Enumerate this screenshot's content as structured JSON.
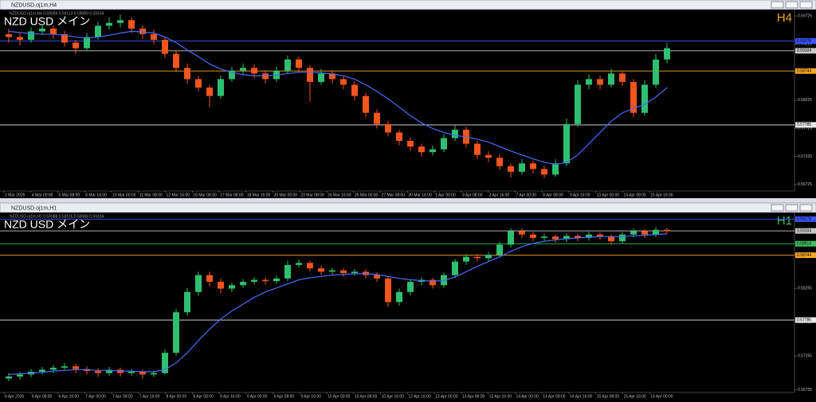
{
  "chart_data": [
    {
      "type": "candlestick",
      "window_title": "NZDUSD.oj1m,H4",
      "info": "NZDUSD.oj1m,H4 0.59094 0.59113 0.59089 0.59104",
      "title": "NZD USD メイン",
      "timeframe": "H4",
      "timeframe_color": "#f5a623",
      "up_color": "#2fbf71",
      "down_color": "#f2551d",
      "ylim": [
        0.5665,
        0.5981
      ],
      "yticks": [
        0.56725,
        0.57225,
        0.57725,
        0.58225,
        0.58725,
        0.59225,
        0.59725
      ],
      "x_labels": [
        "2 Mar 2026",
        "4 Mar 00:00",
        "5 Mar 08:00",
        "6 Mar 16:00",
        "10 Mar 00:00",
        "11 Mar 08:00",
        "12 Mar 16:00",
        "16 Mar 08:00",
        "17 Mar 08:00",
        "18 Mar 16:00",
        "20 Mar 00:00",
        "23 Mar 08:00",
        "24 Mar 16:00",
        "26 Mar 00:00",
        "27 Mar 08:00",
        "30 Mar 16:00",
        "1 Apr 00:00",
        "3 Apr 08:00",
        "3 Apr 16:00",
        "7 Apr 00:00",
        "8 Apr 08:00",
        "9 Apr 16:00",
        "13 Apr 00:00",
        "14 Apr 08:00",
        "15 Apr 16:00"
      ],
      "hlines": [
        {
          "value": 0.59278,
          "color": "#3a55ff"
        },
        {
          "value": 0.59104,
          "color": "#c8c8c8"
        },
        {
          "value": 0.58744,
          "color": "#f5a623"
        },
        {
          "value": 0.57785,
          "color": "#e8e8e8"
        }
      ],
      "candles": [
        [
          0.594,
          0.595,
          0.5925,
          0.5935
        ],
        [
          0.5935,
          0.5942,
          0.592,
          0.593
        ],
        [
          0.593,
          0.5952,
          0.5925,
          0.5945
        ],
        [
          0.5945,
          0.5958,
          0.5938,
          0.595
        ],
        [
          0.595,
          0.5955,
          0.5932,
          0.594
        ],
        [
          0.594,
          0.5946,
          0.5918,
          0.5925
        ],
        [
          0.5925,
          0.593,
          0.5905,
          0.5915
        ],
        [
          0.5915,
          0.5942,
          0.591,
          0.5935
        ],
        [
          0.5935,
          0.5962,
          0.593,
          0.5955
        ],
        [
          0.5955,
          0.597,
          0.5948,
          0.596
        ],
        [
          0.596,
          0.5975,
          0.5952,
          0.5965
        ],
        [
          0.5965,
          0.597,
          0.5942,
          0.595
        ],
        [
          0.595,
          0.5956,
          0.5932,
          0.594
        ],
        [
          0.594,
          0.5948,
          0.5922,
          0.593
        ],
        [
          0.593,
          0.5935,
          0.5898,
          0.5905
        ],
        [
          0.5905,
          0.5912,
          0.5872,
          0.588
        ],
        [
          0.588,
          0.5888,
          0.5852,
          0.586
        ],
        [
          0.586,
          0.5866,
          0.5838,
          0.5845
        ],
        [
          0.5845,
          0.585,
          0.581,
          0.583
        ],
        [
          0.583,
          0.5866,
          0.5825,
          0.586
        ],
        [
          0.586,
          0.5882,
          0.5855,
          0.5875
        ],
        [
          0.5875,
          0.5888,
          0.5868,
          0.588
        ],
        [
          0.588,
          0.5886,
          0.5862,
          0.587
        ],
        [
          0.587,
          0.5876,
          0.5852,
          0.586
        ],
        [
          0.586,
          0.5882,
          0.5855,
          0.5875
        ],
        [
          0.5875,
          0.5902,
          0.587,
          0.5895
        ],
        [
          0.5895,
          0.59,
          0.5872,
          0.588
        ],
        [
          0.588,
          0.5885,
          0.582,
          0.5855
        ],
        [
          0.5855,
          0.5878,
          0.585,
          0.587
        ],
        [
          0.587,
          0.5876,
          0.5852,
          0.586
        ],
        [
          0.586,
          0.5866,
          0.5842,
          0.585
        ],
        [
          0.585,
          0.5856,
          0.5822,
          0.583
        ],
        [
          0.583,
          0.5836,
          0.5792,
          0.58
        ],
        [
          0.58,
          0.5806,
          0.5772,
          0.578
        ],
        [
          0.578,
          0.5786,
          0.5758,
          0.5765
        ],
        [
          0.5765,
          0.577,
          0.5742,
          0.575
        ],
        [
          0.575,
          0.5756,
          0.5732,
          0.574
        ],
        [
          0.574,
          0.5745,
          0.5722,
          0.573
        ],
        [
          0.573,
          0.5742,
          0.5724,
          0.5735
        ],
        [
          0.5735,
          0.5762,
          0.573,
          0.5755
        ],
        [
          0.5755,
          0.5778,
          0.575,
          0.577
        ],
        [
          0.577,
          0.5775,
          0.5738,
          0.5745
        ],
        [
          0.5745,
          0.575,
          0.5718,
          0.5725
        ],
        [
          0.5725,
          0.5732,
          0.5712,
          0.572
        ],
        [
          0.572,
          0.5726,
          0.5698,
          0.5705
        ],
        [
          0.5705,
          0.571,
          0.5685,
          0.5695
        ],
        [
          0.5695,
          0.5718,
          0.569,
          0.571
        ],
        [
          0.571,
          0.5715,
          0.5692,
          0.57
        ],
        [
          0.57,
          0.5706,
          0.5684,
          0.569
        ],
        [
          0.569,
          0.5718,
          0.5686,
          0.571
        ],
        [
          0.571,
          0.579,
          0.5705,
          0.578
        ],
        [
          0.578,
          0.5858,
          0.5775,
          0.585
        ],
        [
          0.585,
          0.5868,
          0.5842,
          0.586
        ],
        [
          0.586,
          0.5866,
          0.5842,
          0.585
        ],
        [
          0.585,
          0.5878,
          0.5845,
          0.587
        ],
        [
          0.587,
          0.5875,
          0.5848,
          0.5855
        ],
        [
          0.5855,
          0.586,
          0.5792,
          0.58
        ],
        [
          0.58,
          0.5858,
          0.5795,
          0.585
        ],
        [
          0.585,
          0.5905,
          0.5845,
          0.5895
        ],
        [
          0.5895,
          0.5925,
          0.5888,
          0.5915
        ]
      ],
      "ma": {
        "color": "#4a6cf7",
        "values": [
          0.5945,
          0.5943,
          0.5941,
          0.594,
          0.594,
          0.5938,
          0.5935,
          0.5933,
          0.5935,
          0.5938,
          0.5942,
          0.5945,
          0.5944,
          0.5942,
          0.5935,
          0.5925,
          0.5912,
          0.59,
          0.5887,
          0.5878,
          0.5872,
          0.5868,
          0.5866,
          0.5866,
          0.5867,
          0.587,
          0.5872,
          0.5872,
          0.5871,
          0.5869,
          0.5866,
          0.586,
          0.585,
          0.5838,
          0.5825,
          0.581,
          0.5795,
          0.5782,
          0.5772,
          0.5765,
          0.576,
          0.5757,
          0.5753,
          0.5748,
          0.574,
          0.5732,
          0.5725,
          0.5718,
          0.5712,
          0.5708,
          0.5712,
          0.5725,
          0.5745,
          0.5765,
          0.5785,
          0.58,
          0.5808,
          0.5815,
          0.5828,
          0.5845
        ]
      }
    },
    {
      "type": "candlestick",
      "window_title": "NZDUSD.oj1m,H1",
      "info": "NZDUSD.oj1m,H1 0.59088 0.59115 0.59088 0.59104",
      "title": "NZD USD メイン",
      "timeframe": "H1",
      "timeframe_color": "#3fbf5f",
      "up_color": "#2fbf71",
      "down_color": "#f2551d",
      "ylim": [
        0.56749,
        0.5934
      ],
      "yticks": [
        0.56755,
        0.57255,
        0.57755,
        0.58255,
        0.58755,
        0.59255
      ],
      "x_labels": [
        "6 Apr 2026",
        "6 Apr 08:00",
        "6 Apr 16:00",
        "7 Apr 00:00",
        "7 Apr 08:00",
        "7 Apr 16:00",
        "8 Apr 00:00",
        "8 Apr 08:00",
        "8 Apr 16:00",
        "9 Apr 00:00",
        "9 Apr 08:00",
        "9 Apr 16:00",
        "10 Apr 00:00",
        "10 Apr 08:00",
        "10 Apr 16:00",
        "12 Apr 16:00",
        "13 Apr 00:00",
        "13 Apr 08:00",
        "13 Apr 16:00",
        "14 Apr 00:00",
        "14 Apr 08:00",
        "14 Apr 16:00",
        "15 Apr 08:00",
        "15 Apr 16:00",
        "16 Apr 00:00"
      ],
      "hlines": [
        {
          "value": 0.59278,
          "color": "#3a55ff"
        },
        {
          "value": 0.59104,
          "color": "#c8c8c8"
        },
        {
          "value": 0.58914,
          "color": "#3fbf5f"
        },
        {
          "value": 0.58744,
          "color": "#f5a623"
        },
        {
          "value": 0.57785,
          "color": "#e8e8e8"
        }
      ],
      "candles": [
        [
          0.5692,
          0.57,
          0.5688,
          0.5695
        ],
        [
          0.5695,
          0.5702,
          0.569,
          0.5698
        ],
        [
          0.5698,
          0.5706,
          0.5694,
          0.5702
        ],
        [
          0.5702,
          0.5709,
          0.5698,
          0.5705
        ],
        [
          0.5705,
          0.5712,
          0.57,
          0.5708
        ],
        [
          0.5708,
          0.5715,
          0.5704,
          0.571
        ],
        [
          0.571,
          0.5714,
          0.57,
          0.5706
        ],
        [
          0.5706,
          0.571,
          0.5698,
          0.5703
        ],
        [
          0.5703,
          0.5707,
          0.5694,
          0.57
        ],
        [
          0.57,
          0.5709,
          0.5696,
          0.5705
        ],
        [
          0.5705,
          0.5708,
          0.5695,
          0.57
        ],
        [
          0.57,
          0.5706,
          0.5696,
          0.5702
        ],
        [
          0.5702,
          0.5705,
          0.5692,
          0.5698
        ],
        [
          0.5698,
          0.5704,
          0.5694,
          0.57
        ],
        [
          0.57,
          0.5735,
          0.5698,
          0.573
        ],
        [
          0.573,
          0.5795,
          0.5726,
          0.579
        ],
        [
          0.579,
          0.5826,
          0.5785,
          0.582
        ],
        [
          0.582,
          0.585,
          0.5815,
          0.5845
        ],
        [
          0.5845,
          0.585,
          0.5828,
          0.5835
        ],
        [
          0.5835,
          0.584,
          0.5818,
          0.5825
        ],
        [
          0.5825,
          0.5834,
          0.582,
          0.583
        ],
        [
          0.583,
          0.5839,
          0.5826,
          0.5835
        ],
        [
          0.5835,
          0.5842,
          0.5831,
          0.5838
        ],
        [
          0.5838,
          0.5841,
          0.5831,
          0.5836
        ],
        [
          0.5836,
          0.5844,
          0.5832,
          0.584
        ],
        [
          0.584,
          0.5866,
          0.5836,
          0.586
        ],
        [
          0.586,
          0.5868,
          0.5856,
          0.5863
        ],
        [
          0.5863,
          0.5866,
          0.585,
          0.5855
        ],
        [
          0.5855,
          0.5859,
          0.5845,
          0.585
        ],
        [
          0.585,
          0.5856,
          0.5846,
          0.5852
        ],
        [
          0.5852,
          0.5855,
          0.5843,
          0.5848
        ],
        [
          0.5848,
          0.5854,
          0.5844,
          0.585
        ],
        [
          0.585,
          0.5854,
          0.584,
          0.5845
        ],
        [
          0.5845,
          0.5849,
          0.5835,
          0.584
        ],
        [
          0.584,
          0.5844,
          0.5798,
          0.5805
        ],
        [
          0.5805,
          0.5825,
          0.58,
          0.582
        ],
        [
          0.582,
          0.5839,
          0.5815,
          0.5835
        ],
        [
          0.5835,
          0.5842,
          0.583,
          0.5838
        ],
        [
          0.5838,
          0.5841,
          0.5825,
          0.583
        ],
        [
          0.583,
          0.5849,
          0.5826,
          0.5845
        ],
        [
          0.5845,
          0.5869,
          0.5841,
          0.5865
        ],
        [
          0.5865,
          0.5876,
          0.586,
          0.5872
        ],
        [
          0.5872,
          0.5876,
          0.5865,
          0.587
        ],
        [
          0.587,
          0.5879,
          0.5866,
          0.5875
        ],
        [
          0.5875,
          0.5894,
          0.5871,
          0.589
        ],
        [
          0.589,
          0.5914,
          0.5886,
          0.591
        ],
        [
          0.591,
          0.5914,
          0.59,
          0.5905
        ],
        [
          0.5905,
          0.5909,
          0.5895,
          0.59
        ],
        [
          0.59,
          0.5906,
          0.5896,
          0.5902
        ],
        [
          0.5902,
          0.5905,
          0.5893,
          0.5898
        ],
        [
          0.5898,
          0.5907,
          0.5894,
          0.5903
        ],
        [
          0.5903,
          0.5906,
          0.5895,
          0.59
        ],
        [
          0.59,
          0.5909,
          0.5896,
          0.5905
        ],
        [
          0.5905,
          0.5908,
          0.5897,
          0.5902
        ],
        [
          0.5902,
          0.5905,
          0.589,
          0.5895
        ],
        [
          0.5895,
          0.5909,
          0.5891,
          0.5905
        ],
        [
          0.5905,
          0.5914,
          0.5901,
          0.591
        ],
        [
          0.591,
          0.5913,
          0.59,
          0.5905
        ],
        [
          0.5905,
          0.5916,
          0.5901,
          0.5912
        ],
        [
          0.5912,
          0.5915,
          0.5906,
          0.591
        ]
      ],
      "ma": {
        "color": "#4a6cf7",
        "values": [
          0.5698,
          0.5699,
          0.57,
          0.5701,
          0.5703,
          0.5704,
          0.5705,
          0.5705,
          0.5704,
          0.5704,
          0.5703,
          0.5703,
          0.5702,
          0.5702,
          0.5705,
          0.5715,
          0.573,
          0.5748,
          0.5765,
          0.578,
          0.5792,
          0.5802,
          0.5812,
          0.582,
          0.5826,
          0.5832,
          0.5838,
          0.5841,
          0.5843,
          0.5845,
          0.5846,
          0.5847,
          0.5847,
          0.5846,
          0.5843,
          0.584,
          0.5838,
          0.5837,
          0.5836,
          0.5837,
          0.5842,
          0.585,
          0.5858,
          0.5865,
          0.5872,
          0.588,
          0.5887,
          0.5892,
          0.5895,
          0.5897,
          0.5899,
          0.59,
          0.5901,
          0.5902,
          0.5902,
          0.5902,
          0.5903,
          0.5904,
          0.5905,
          0.5906
        ]
      }
    }
  ]
}
